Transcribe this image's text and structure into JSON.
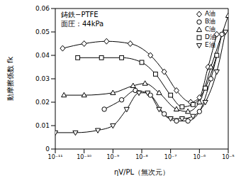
{
  "chart_data": {
    "type": "line",
    "annotations": [
      "鋳鉄−PTFE",
      "面圧：44kPa"
    ],
    "x_label": "ηV/PL（無次元）",
    "y_label": "動摩擦係数  fk",
    "log": "x",
    "grid": false,
    "legend": "upper right",
    "xlim": [
      1e-11,
      1e-05
    ],
    "xticks": [
      {
        "value": 1e-11,
        "label": "10⁻¹¹"
      },
      {
        "value": 1e-10,
        "label": "10⁻¹⁰"
      },
      {
        "value": 1e-09,
        "label": "10⁻⁹"
      },
      {
        "value": 1e-08,
        "label": "10⁻⁸"
      },
      {
        "value": 1e-07,
        "label": "10⁻⁷"
      },
      {
        "value": 1e-06,
        "label": "10⁻⁶"
      },
      {
        "value": 1e-05,
        "label": "10⁻⁵"
      }
    ],
    "ylim": [
      0,
      0.06
    ],
    "yticks": [
      0,
      0.01,
      0.02,
      0.03,
      0.04,
      0.05,
      0.06
    ],
    "series": [
      {
        "name": "A油",
        "color": "#000000",
        "marker": "diamond",
        "x": [
          1.8e-11,
          1e-10,
          6e-10,
          4e-09,
          2e-08,
          6e-08,
          1.6e-07,
          5e-07,
          1e-06,
          2e-06,
          4e-06
        ],
        "values": [
          0.043,
          0.045,
          0.046,
          0.045,
          0.04,
          0.033,
          0.025,
          0.02,
          0.022,
          0.035,
          0.049
        ]
      },
      {
        "name": "B油",
        "color": "#000000",
        "marker": "circle",
        "x": [
          5e-10,
          2e-09,
          6e-09,
          2e-08,
          6e-08,
          1.6e-07,
          4e-07,
          1e-06,
          2.5e-06,
          6e-06
        ],
        "values": [
          0.017,
          0.021,
          0.025,
          0.023,
          0.015,
          0.012,
          0.012,
          0.016,
          0.03,
          0.049
        ]
      },
      {
        "name": "C油",
        "color": "#000000",
        "marker": "triangle",
        "x": [
          2e-11,
          1e-10,
          1e-09,
          5e-09,
          1.3e-08,
          4e-08,
          1.6e-07,
          4e-07,
          1e-06,
          2.5e-06,
          1e-05
        ],
        "values": [
          0.023,
          0.023,
          0.024,
          0.027,
          0.028,
          0.024,
          0.017,
          0.016,
          0.02,
          0.035,
          0.057
        ]
      },
      {
        "name": "D油",
        "color": "#000000",
        "marker": "square",
        "x": [
          6e-11,
          4e-10,
          2e-09,
          1e-08,
          3e-08,
          1e-07,
          2.5e-07,
          6e-07,
          1.6e-06,
          4e-06
        ],
        "values": [
          0.039,
          0.039,
          0.039,
          0.037,
          0.032,
          0.023,
          0.018,
          0.019,
          0.026,
          0.04
        ]
      },
      {
        "name": "E油",
        "color": "#000000",
        "marker": "triangle-down",
        "x": [
          1e-11,
          5e-11,
          3e-10,
          1e-09,
          3e-09,
          8e-09,
          1.6e-08,
          4e-08,
          1e-07,
          2.5e-07,
          6e-07,
          1.6e-06,
          4e-06,
          8e-06
        ],
        "values": [
          0.007,
          0.007,
          0.008,
          0.01,
          0.017,
          0.024,
          0.024,
          0.017,
          0.013,
          0.013,
          0.014,
          0.02,
          0.033,
          0.05
        ]
      }
    ]
  }
}
